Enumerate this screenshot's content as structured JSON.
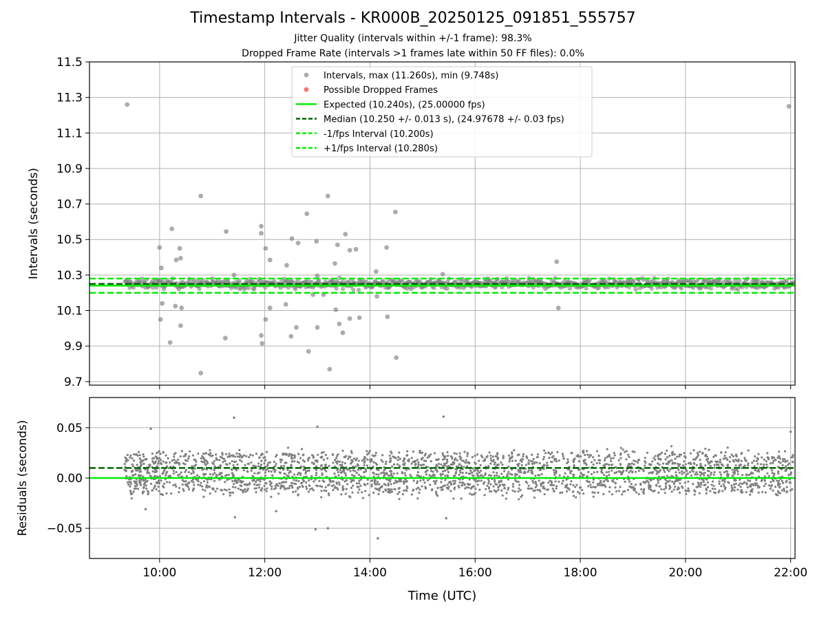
{
  "figure": {
    "title": "Timestamp Intervals - KR000B_20250125_091851_555757",
    "subtitle_jitter": "Jitter Quality (intervals within +/-1 frame): 98.3%",
    "subtitle_dropped": "Dropped Frame Rate (intervals >1 frames late within 50 FF files): 0.0%"
  },
  "colors": {
    "points": "#808080",
    "dropped": "#ff6060",
    "expected": "#00ee00",
    "median": "#006400",
    "fps_bounds": "#00ee00",
    "grid": "#b0b0b0"
  },
  "chart_data": [
    {
      "type": "scatter",
      "ylabel": "Intervals (seconds)",
      "ylim": [
        9.68,
        11.5
      ],
      "xlim_hours": [
        8.667,
        22.083
      ],
      "yticks": [
        9.7,
        9.9,
        10.1,
        10.3,
        10.5,
        10.7,
        10.9,
        11.1,
        11.3,
        11.5
      ],
      "ytick_labels": [
        "9.7",
        "9.9",
        "10.1",
        "10.3",
        "10.5",
        "10.7",
        "10.9",
        "11.1",
        "11.3",
        "11.5"
      ],
      "grid": true,
      "legend_position": "top-center",
      "legend": [
        "Intervals, max (11.260s), min (9.748s)",
        "Possible Dropped Frames",
        "Expected (10.240s), (25.00000 fps)",
        "Median (10.250 +/- 0.013 s), (24.97678 +/- 0.03 fps)",
        "-1/fps Interval (10.200s)",
        "+1/fps Interval (10.280s)"
      ],
      "lines": {
        "expected": 10.24,
        "median": 10.25,
        "minus_fps": 10.2,
        "plus_fps": 10.28
      },
      "time_range_hours": [
        9.33,
        22.05
      ],
      "typical_band": [
        10.21,
        10.29
      ],
      "outliers": [
        [
          "09:23",
          11.26
        ],
        [
          "21:58",
          11.25
        ],
        [
          "10:47",
          10.745
        ],
        [
          "13:12",
          10.745
        ],
        [
          "12:48",
          10.645
        ],
        [
          "14:29",
          10.655
        ],
        [
          "10:14",
          10.56
        ],
        [
          "11:16",
          10.545
        ],
        [
          "11:56",
          10.575
        ],
        [
          "11:56",
          10.535
        ],
        [
          "13:32",
          10.53
        ],
        [
          "12:31",
          10.505
        ],
        [
          "12:59",
          10.49
        ],
        [
          "12:38",
          10.48
        ],
        [
          "13:23",
          10.47
        ],
        [
          "10:00",
          10.455
        ],
        [
          "12:01",
          10.45
        ],
        [
          "13:37",
          10.44
        ],
        [
          "13:44",
          10.445
        ],
        [
          "14:19",
          10.455
        ],
        [
          "10:23",
          10.45
        ],
        [
          "10:24",
          10.395
        ],
        [
          "10:19",
          10.385
        ],
        [
          "12:06",
          10.385
        ],
        [
          "13:20",
          10.365
        ],
        [
          "17:33",
          10.375
        ],
        [
          "12:25",
          10.355
        ],
        [
          "10:02",
          10.34
        ],
        [
          "14:07",
          10.32
        ],
        [
          "15:23",
          10.305
        ],
        [
          "11:25",
          10.3
        ],
        [
          "13:00",
          10.295
        ],
        [
          "12:55",
          10.19
        ],
        [
          "13:07",
          10.19
        ],
        [
          "14:08",
          10.18
        ],
        [
          "10:03",
          10.14
        ],
        [
          "12:24",
          10.135
        ],
        [
          "10:18",
          10.125
        ],
        [
          "10:25",
          10.115
        ],
        [
          "12:06",
          10.115
        ],
        [
          "17:35",
          10.115
        ],
        [
          "13:21",
          10.105
        ],
        [
          "13:48",
          10.06
        ],
        [
          "13:37",
          10.055
        ],
        [
          "14:20",
          10.065
        ],
        [
          "10:01",
          10.05
        ],
        [
          "12:01",
          10.05
        ],
        [
          "13:25",
          10.025
        ],
        [
          "10:24",
          10.015
        ],
        [
          "12:36",
          10.005
        ],
        [
          "13:00",
          10.005
        ],
        [
          "13:29",
          9.975
        ],
        [
          "11:56",
          9.96
        ],
        [
          "12:30",
          9.955
        ],
        [
          "11:15",
          9.945
        ],
        [
          "11:57",
          9.915
        ],
        [
          "10:12",
          9.92
        ],
        [
          "14:30",
          9.835
        ],
        [
          "12:50",
          9.87
        ],
        [
          "13:14",
          9.77
        ],
        [
          "10:47",
          9.748
        ]
      ]
    },
    {
      "type": "scatter",
      "ylabel": "Residuals (seconds)",
      "xlabel": "Time (UTC)",
      "ylim": [
        -0.08,
        0.08
      ],
      "yticks": [
        -0.05,
        0.0,
        0.05
      ],
      "ytick_labels": [
        "−0.05",
        "0.00",
        "0.05"
      ],
      "xtick_hours": [
        10,
        12,
        14,
        16,
        18,
        20,
        22
      ],
      "xtick_labels": [
        "10:00",
        "12:00",
        "14:00",
        "16:00",
        "18:00",
        "20:00",
        "22:00"
      ],
      "grid": true,
      "lines": {
        "zero": 0.0,
        "median_offset": 0.01
      },
      "residual_range": [
        -0.06,
        0.061
      ],
      "residual_clusters": [
        -0.01,
        0.0,
        0.01,
        0.02
      ],
      "outliers": [
        [
          "11:25",
          0.06
        ],
        [
          "15:24",
          0.061
        ],
        [
          "13:00",
          0.051
        ],
        [
          "13:12",
          -0.05
        ],
        [
          "12:58",
          -0.051
        ],
        [
          "14:09",
          -0.06
        ],
        [
          "15:27",
          -0.04
        ],
        [
          "11:26",
          -0.039
        ],
        [
          "09:44",
          -0.031
        ],
        [
          "12:13",
          -0.033
        ],
        [
          "22:00",
          0.046
        ],
        [
          "09:50",
          0.049
        ]
      ]
    }
  ]
}
